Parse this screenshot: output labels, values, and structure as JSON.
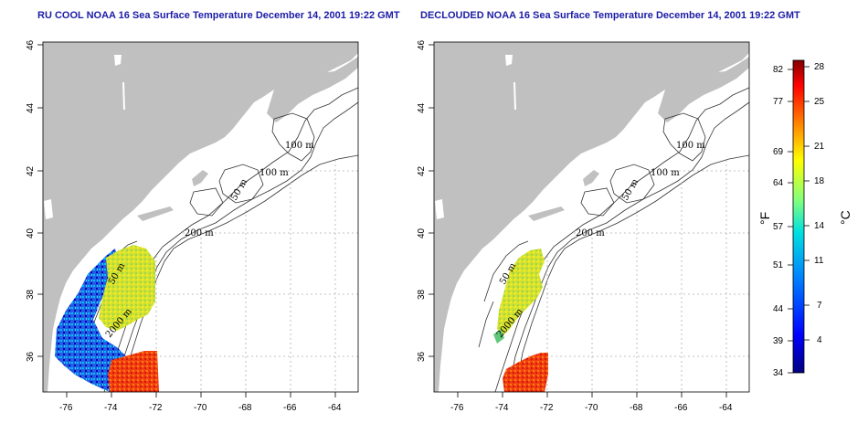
{
  "panels": [
    {
      "id": "left",
      "title": "RU COOL NOAA 16 Sea Surface Temperature December 14, 2001 19:22 GMT",
      "contour_labels": [
        "100 m",
        "100 m",
        "50 m",
        "200 m",
        "50 m",
        "2000 m"
      ]
    },
    {
      "id": "right",
      "title": "DECLOUDED NOAA 16 Sea Surface Temperature December 14, 2001 19:22 GMT",
      "contour_labels": [
        "100 m",
        "100 m",
        "50 m",
        "200 m",
        "50 m",
        "2000 m"
      ]
    }
  ],
  "axes": {
    "x_ticks": [
      "-76",
      "-74",
      "-72",
      "-70",
      "-68",
      "-66",
      "-64"
    ],
    "y_ticks": [
      "36",
      "38",
      "40",
      "42",
      "44",
      "46"
    ]
  },
  "colorbar": {
    "fahrenheit_ticks": [
      "82",
      "77",
      "69",
      "64",
      "57",
      "51",
      "44",
      "39",
      "34"
    ],
    "celsius_ticks": [
      "28",
      "25",
      "21",
      "18",
      "14",
      "11",
      "7",
      "4"
    ],
    "unit_f": "°F",
    "unit_c": "°C",
    "colors": [
      "#00007f",
      "#0000ff",
      "#007fff",
      "#00ffff",
      "#7fff7f",
      "#ffff00",
      "#ff7f00",
      "#ff0000",
      "#7f0000"
    ]
  }
}
